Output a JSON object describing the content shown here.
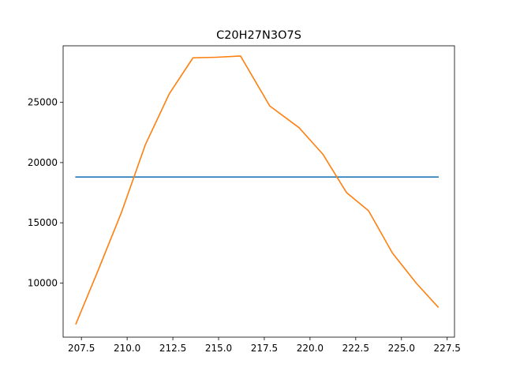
{
  "chart_data": {
    "type": "line",
    "title": "C20H27N3O7S",
    "xlabel": "",
    "ylabel": "",
    "xlim": [
      206.5,
      227.9
    ],
    "ylim": [
      5500,
      29700
    ],
    "xticks": [
      207.5,
      210.0,
      212.5,
      215.0,
      217.5,
      220.0,
      222.5,
      225.0,
      227.5
    ],
    "xtick_labels": [
      "207.5",
      "210.0",
      "212.5",
      "215.0",
      "217.5",
      "220.0",
      "222.5",
      "225.0",
      "227.5"
    ],
    "yticks": [
      10000,
      15000,
      20000,
      25000
    ],
    "ytick_labels": [
      "10000",
      "15000",
      "20000",
      "25000"
    ],
    "grid": false,
    "series": [
      {
        "color": "#1f77b4",
        "x": [
          207.2,
          227.0
        ],
        "y": [
          18800,
          18800
        ]
      },
      {
        "color": "#ff7f0e",
        "x": [
          207.2,
          208.4,
          209.7,
          211.0,
          212.3,
          213.6,
          214.9,
          216.2,
          217.8,
          219.4,
          220.7,
          222.0,
          223.2,
          224.5,
          225.8,
          227.0
        ],
        "y": [
          6600,
          11000,
          15900,
          21500,
          25700,
          28700,
          28750,
          28850,
          24700,
          22900,
          20700,
          17500,
          16000,
          12500,
          10000,
          8000
        ]
      }
    ]
  }
}
